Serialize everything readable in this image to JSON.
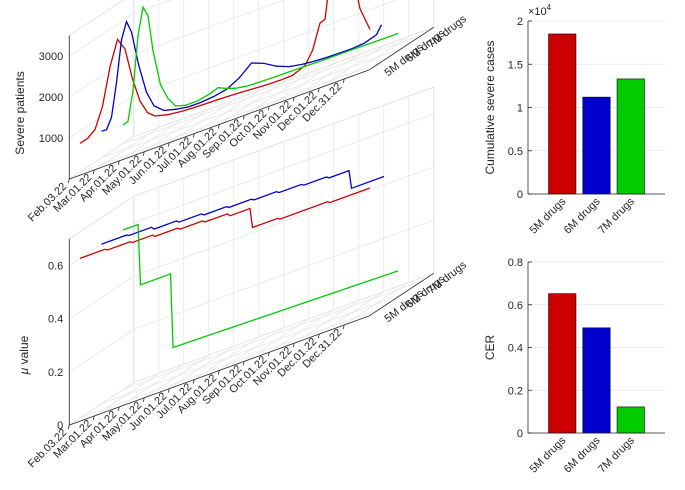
{
  "colors": {
    "5M drugs": "#cc0000",
    "6M drugs": "#0000cc",
    "7M drugs": "#00cc00"
  },
  "chart_data": [
    {
      "type": "line",
      "title": "",
      "zlabel": "Severe patients",
      "xticks": [
        "Feb.03.22",
        "Mar.01.22",
        "Apr.01.22",
        "May.01.22",
        "Jun.01.22",
        "Jul.01.22",
        "Aug.01.22",
        "Sep.01.22",
        "Oct.01.22",
        "Nov.01.22",
        "Dec.01.22",
        "Dec.31.22"
      ],
      "yticks": [
        "5M drugs",
        "6M drugs",
        "7M drugs"
      ],
      "zticks": [
        "1000",
        "2000",
        "3000"
      ],
      "zlim": [
        0,
        3500
      ],
      "series": [
        {
          "name": "5M drugs",
          "x": [
            0,
            0.3,
            0.6,
            0.9,
            1.2,
            1.5,
            1.8,
            2.1,
            2.4,
            2.7,
            3,
            3.5,
            4,
            4.5,
            5,
            5.5,
            6,
            6.5,
            7,
            7.5,
            8,
            8.5,
            9,
            9.3,
            9.6,
            9.8,
            10,
            10.3,
            10.6,
            10.9,
            11.2,
            11.6
          ],
          "values": [
            700,
            750,
            900,
            1400,
            2300,
            2900,
            2600,
            1800,
            1200,
            850,
            700,
            620,
            580,
            560,
            550,
            540,
            530,
            510,
            490,
            470,
            460,
            470,
            600,
            900,
            1500,
            1550,
            2500,
            3300,
            3150,
            2400,
            1500,
            900
          ]
        },
        {
          "name": "6M drugs",
          "x": [
            0,
            0.2,
            0.4,
            0.6,
            0.8,
            1,
            1.2,
            1.5,
            1.8,
            2.1,
            2.5,
            3,
            3.5,
            4,
            4.5,
            5,
            5.5,
            6,
            6.5,
            7,
            7.5,
            8,
            8.5,
            9,
            9.5,
            10,
            10.5,
            11,
            11.2
          ],
          "values": [
            650,
            640,
            900,
            1700,
            2700,
            3100,
            2800,
            1900,
            1200,
            800,
            600,
            520,
            470,
            470,
            500,
            560,
            720,
            980,
            860,
            680,
            560,
            500,
            470,
            450,
            440,
            440,
            460,
            560,
            760
          ]
        },
        {
          "name": "7M drugs",
          "x": [
            0,
            0.2,
            0.4,
            0.6,
            0.8,
            1,
            1.2,
            1.5,
            1.8,
            2.1,
            2.5,
            3,
            3.5,
            3.8,
            4.1,
            4.5,
            5,
            5.5,
            6,
            7,
            8,
            9,
            10,
            11
          ],
          "values": [
            450,
            500,
            1200,
            2500,
            3150,
            2900,
            2000,
            1100,
            700,
            450,
            380,
            380,
            450,
            520,
            440,
            350,
            300,
            290,
            280,
            270,
            260,
            255,
            250,
            245
          ]
        }
      ]
    },
    {
      "type": "bar",
      "title": "",
      "categories": [
        "5M drugs",
        "6M drugs",
        "7M drugs"
      ],
      "values": [
        18500,
        11200,
        13300
      ],
      "ylabel": "Cumulative severe cases",
      "yticks": [
        "0",
        "0.5",
        "1",
        "1.5",
        "2"
      ],
      "exponent": "×10",
      "exponent_power": "4",
      "ylim": [
        0,
        20000
      ]
    },
    {
      "type": "line",
      "title": "",
      "zlabel_symbol": "μ",
      "zlabel_text": " value",
      "xticks": [
        "Feb.03.22",
        "Mar.01.22",
        "Apr.01.22",
        "May.01.22",
        "Jun.01.22",
        "Jul.01.22",
        "Aug.01.22",
        "Sep.01.22",
        "Oct.01.22",
        "Nov.01.22",
        "Dec.01.22",
        "Dec.31.22"
      ],
      "yticks": [
        "5M drugs",
        "6M drugs",
        "7M drugs"
      ],
      "zticks": [
        "0",
        "0.2",
        "0.4",
        "0.6"
      ],
      "zlim": [
        0,
        0.7
      ],
      "series": [
        {
          "name": "5M drugs",
          "x": [
            0,
            1,
            1.1,
            2,
            2.1,
            2.9,
            3,
            3.9,
            4,
            4.9,
            5,
            5.9,
            6,
            6.8,
            6.9,
            7.9,
            8,
            9.9,
            10,
            11.6
          ],
          "values": [
            0.6,
            0.6,
            0.594,
            0.594,
            0.588,
            0.588,
            0.58,
            0.58,
            0.573,
            0.573,
            0.566,
            0.566,
            0.555,
            0.555,
            0.48,
            0.48,
            0.474,
            0.474,
            0.468,
            0.468
          ]
        },
        {
          "name": "6M drugs",
          "x": [
            0,
            1,
            1.1,
            2,
            2.1,
            3,
            3.1,
            4,
            4.1,
            5,
            5.1,
            6,
            6.1,
            7,
            7.1,
            8,
            8.1,
            9,
            9.1,
            9.9,
            10,
            11.3
          ],
          "values": [
            0.6,
            0.6,
            0.595,
            0.595,
            0.585,
            0.585,
            0.577,
            0.577,
            0.57,
            0.57,
            0.564,
            0.564,
            0.558,
            0.558,
            0.551,
            0.551,
            0.545,
            0.545,
            0.538,
            0.538,
            0.468,
            0.468
          ]
        },
        {
          "name": "7M drugs",
          "x": [
            0,
            0.6,
            0.7,
            1.9,
            2,
            11
          ],
          "values": [
            0.6,
            0.6,
            0.37,
            0.37,
            0.09,
            0.07
          ]
        }
      ]
    },
    {
      "type": "bar",
      "title": "",
      "categories": [
        "5M drugs",
        "6M drugs",
        "7M drugs"
      ],
      "values": [
        0.652,
        0.492,
        0.122
      ],
      "ylabel": "CER",
      "yticks": [
        "0",
        "0.2",
        "0.4",
        "0.6",
        "0.8"
      ],
      "ylim": [
        0,
        0.8
      ]
    }
  ]
}
